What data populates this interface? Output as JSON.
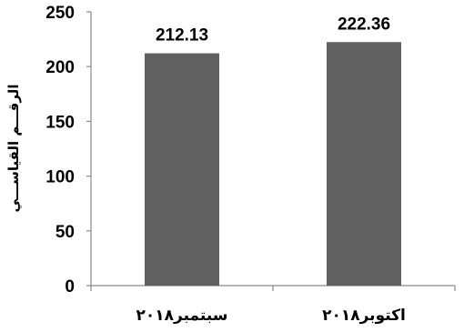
{
  "chart_data": {
    "type": "bar",
    "categories": [
      "سبتمبر٢٠١٨",
      "اكتوبر٢٠١٨"
    ],
    "values": [
      212.13,
      222.36
    ],
    "data_labels": [
      "212.13",
      "222.36"
    ],
    "title": "",
    "xlabel": "",
    "ylabel": "الرقـــم القياســـي",
    "ylim": [
      0,
      250
    ],
    "yticks": [
      0,
      50,
      100,
      150,
      200,
      250
    ],
    "grid": false,
    "legend": "none",
    "bar_color": "#606060",
    "axis_color": "#888888"
  }
}
